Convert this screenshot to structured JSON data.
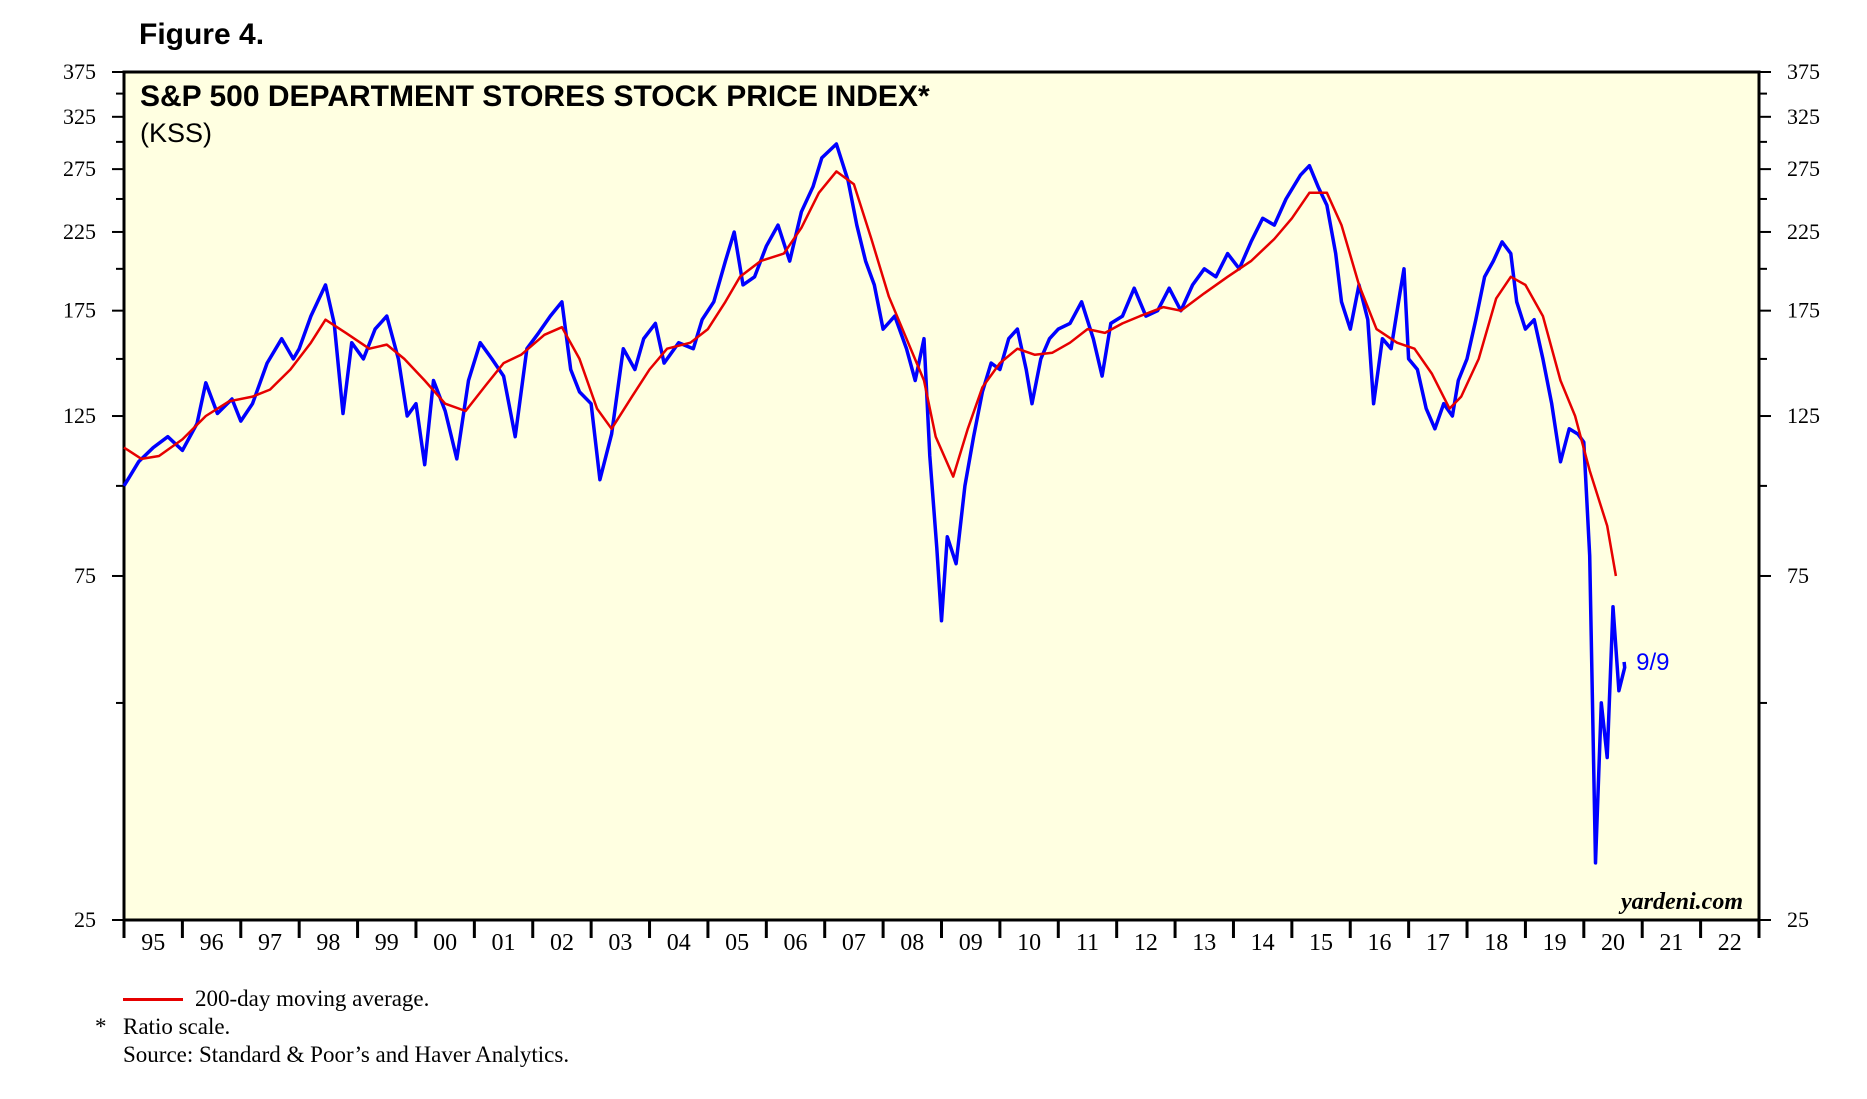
{
  "figure_label": "Figure 4.",
  "chart_data": {
    "type": "line",
    "title": "S&P 500 DEPARTMENT STORES STOCK PRICE INDEX*",
    "subtitle": "(KSS)",
    "scale": "log",
    "ylim": [
      25,
      375
    ],
    "y_ticks_labeled": [
      25,
      75,
      125,
      175,
      225,
      275,
      325,
      375
    ],
    "y_ticks_minor": [
      50,
      100,
      150,
      200,
      250,
      300,
      350
    ],
    "x_range": [
      1995,
      2023
    ],
    "x_tick_labels": [
      "95",
      "96",
      "97",
      "98",
      "99",
      "00",
      "01",
      "02",
      "03",
      "04",
      "05",
      "06",
      "07",
      "08",
      "09",
      "10",
      "11",
      "12",
      "13",
      "14",
      "15",
      "16",
      "17",
      "18",
      "19",
      "20",
      "21",
      "22"
    ],
    "end_label": "9/9",
    "watermark": "yardeni.com",
    "series": [
      {
        "name": "S&P 500 Department Stores Stock Price Index (KSS)",
        "color": "#0000ff",
        "points": [
          [
            1995.0,
            100
          ],
          [
            1995.25,
            108
          ],
          [
            1995.5,
            113
          ],
          [
            1995.75,
            117
          ],
          [
            1996.0,
            112
          ],
          [
            1996.25,
            122
          ],
          [
            1996.4,
            139
          ],
          [
            1996.6,
            126
          ],
          [
            1996.85,
            132
          ],
          [
            1997.0,
            123
          ],
          [
            1997.2,
            130
          ],
          [
            1997.45,
            148
          ],
          [
            1997.7,
            160
          ],
          [
            1997.9,
            150
          ],
          [
            1998.0,
            155
          ],
          [
            1998.2,
            172
          ],
          [
            1998.45,
            190
          ],
          [
            1998.6,
            168
          ],
          [
            1998.75,
            126
          ],
          [
            1998.9,
            158
          ],
          [
            1999.1,
            150
          ],
          [
            1999.3,
            165
          ],
          [
            1999.5,
            172
          ],
          [
            1999.7,
            150
          ],
          [
            1999.85,
            125
          ],
          [
            2000.0,
            130
          ],
          [
            2000.15,
            107
          ],
          [
            2000.3,
            140
          ],
          [
            2000.5,
            127
          ],
          [
            2000.7,
            109
          ],
          [
            2000.9,
            140
          ],
          [
            2001.1,
            158
          ],
          [
            2001.3,
            150
          ],
          [
            2001.5,
            142
          ],
          [
            2001.7,
            117
          ],
          [
            2001.9,
            155
          ],
          [
            2002.1,
            163
          ],
          [
            2002.3,
            172
          ],
          [
            2002.5,
            180
          ],
          [
            2002.65,
            145
          ],
          [
            2002.8,
            135
          ],
          [
            2003.0,
            130
          ],
          [
            2003.15,
            102
          ],
          [
            2003.35,
            118
          ],
          [
            2003.55,
            155
          ],
          [
            2003.75,
            145
          ],
          [
            2003.9,
            160
          ],
          [
            2004.1,
            168
          ],
          [
            2004.25,
            148
          ],
          [
            2004.5,
            158
          ],
          [
            2004.75,
            155
          ],
          [
            2004.9,
            170
          ],
          [
            2005.1,
            180
          ],
          [
            2005.3,
            205
          ],
          [
            2005.45,
            225
          ],
          [
            2005.6,
            190
          ],
          [
            2005.8,
            195
          ],
          [
            2006.0,
            215
          ],
          [
            2006.2,
            230
          ],
          [
            2006.4,
            205
          ],
          [
            2006.6,
            240
          ],
          [
            2006.8,
            260
          ],
          [
            2006.95,
            285
          ],
          [
            2007.2,
            298
          ],
          [
            2007.4,
            265
          ],
          [
            2007.55,
            230
          ],
          [
            2007.7,
            205
          ],
          [
            2007.85,
            190
          ],
          [
            2008.0,
            165
          ],
          [
            2008.2,
            172
          ],
          [
            2008.4,
            155
          ],
          [
            2008.55,
            140
          ],
          [
            2008.7,
            160
          ],
          [
            2008.8,
            110
          ],
          [
            2008.92,
            82
          ],
          [
            2009.0,
            65
          ],
          [
            2009.1,
            85
          ],
          [
            2009.25,
            78
          ],
          [
            2009.4,
            100
          ],
          [
            2009.55,
            117
          ],
          [
            2009.7,
            135
          ],
          [
            2009.85,
            148
          ],
          [
            2010.0,
            145
          ],
          [
            2010.15,
            160
          ],
          [
            2010.3,
            165
          ],
          [
            2010.45,
            145
          ],
          [
            2010.55,
            130
          ],
          [
            2010.7,
            150
          ],
          [
            2010.85,
            160
          ],
          [
            2011.0,
            165
          ],
          [
            2011.2,
            168
          ],
          [
            2011.4,
            180
          ],
          [
            2011.6,
            160
          ],
          [
            2011.75,
            142
          ],
          [
            2011.9,
            168
          ],
          [
            2012.1,
            172
          ],
          [
            2012.3,
            188
          ],
          [
            2012.5,
            172
          ],
          [
            2012.7,
            175
          ],
          [
            2012.9,
            188
          ],
          [
            2013.1,
            175
          ],
          [
            2013.3,
            190
          ],
          [
            2013.5,
            200
          ],
          [
            2013.7,
            195
          ],
          [
            2013.9,
            210
          ],
          [
            2014.1,
            200
          ],
          [
            2014.3,
            218
          ],
          [
            2014.5,
            235
          ],
          [
            2014.7,
            230
          ],
          [
            2014.9,
            250
          ],
          [
            2015.15,
            270
          ],
          [
            2015.3,
            278
          ],
          [
            2015.45,
            260
          ],
          [
            2015.6,
            245
          ],
          [
            2015.75,
            210
          ],
          [
            2015.85,
            180
          ],
          [
            2016.0,
            165
          ],
          [
            2016.15,
            190
          ],
          [
            2016.3,
            170
          ],
          [
            2016.4,
            130
          ],
          [
            2016.55,
            160
          ],
          [
            2016.7,
            155
          ],
          [
            2016.85,
            185
          ],
          [
            2016.92,
            200
          ],
          [
            2017.0,
            150
          ],
          [
            2017.15,
            145
          ],
          [
            2017.3,
            128
          ],
          [
            2017.45,
            120
          ],
          [
            2017.6,
            130
          ],
          [
            2017.75,
            125
          ],
          [
            2017.85,
            140
          ],
          [
            2018.0,
            150
          ],
          [
            2018.15,
            170
          ],
          [
            2018.3,
            195
          ],
          [
            2018.45,
            205
          ],
          [
            2018.6,
            218
          ],
          [
            2018.75,
            210
          ],
          [
            2018.85,
            180
          ],
          [
            2019.0,
            165
          ],
          [
            2019.15,
            170
          ],
          [
            2019.3,
            150
          ],
          [
            2019.45,
            130
          ],
          [
            2019.6,
            108
          ],
          [
            2019.75,
            120
          ],
          [
            2019.9,
            118
          ],
          [
            2020.0,
            115
          ],
          [
            2020.1,
            80
          ],
          [
            2020.2,
            30
          ],
          [
            2020.3,
            50
          ],
          [
            2020.4,
            42
          ],
          [
            2020.5,
            68
          ],
          [
            2020.6,
            52
          ],
          [
            2020.7,
            56
          ],
          [
            2020.69,
            57
          ]
        ]
      },
      {
        "name": "200-day moving average",
        "color": "#e60000",
        "points": [
          [
            1995.0,
            113
          ],
          [
            1995.3,
            109
          ],
          [
            1995.6,
            110
          ],
          [
            1996.0,
            116
          ],
          [
            1996.4,
            125
          ],
          [
            1996.8,
            131
          ],
          [
            1997.2,
            133
          ],
          [
            1997.5,
            136
          ],
          [
            1997.85,
            145
          ],
          [
            1998.2,
            158
          ],
          [
            1998.45,
            170
          ],
          [
            1998.8,
            163
          ],
          [
            1999.2,
            155
          ],
          [
            1999.5,
            157
          ],
          [
            1999.8,
            150
          ],
          [
            2000.15,
            140
          ],
          [
            2000.5,
            130
          ],
          [
            2000.85,
            127
          ],
          [
            2001.2,
            138
          ],
          [
            2001.5,
            148
          ],
          [
            2001.8,
            152
          ],
          [
            2002.2,
            162
          ],
          [
            2002.5,
            166
          ],
          [
            2002.8,
            150
          ],
          [
            2003.1,
            128
          ],
          [
            2003.35,
            120
          ],
          [
            2003.7,
            133
          ],
          [
            2004.0,
            145
          ],
          [
            2004.3,
            155
          ],
          [
            2004.7,
            158
          ],
          [
            2005.0,
            165
          ],
          [
            2005.3,
            180
          ],
          [
            2005.55,
            195
          ],
          [
            2005.9,
            205
          ],
          [
            2006.3,
            210
          ],
          [
            2006.6,
            228
          ],
          [
            2006.9,
            255
          ],
          [
            2007.2,
            273
          ],
          [
            2007.5,
            262
          ],
          [
            2007.8,
            220
          ],
          [
            2008.1,
            183
          ],
          [
            2008.4,
            160
          ],
          [
            2008.7,
            140
          ],
          [
            2008.9,
            117
          ],
          [
            2009.2,
            103
          ],
          [
            2009.45,
            120
          ],
          [
            2009.7,
            137
          ],
          [
            2010.0,
            148
          ],
          [
            2010.3,
            155
          ],
          [
            2010.6,
            152
          ],
          [
            2010.9,
            153
          ],
          [
            2011.2,
            158
          ],
          [
            2011.5,
            165
          ],
          [
            2011.8,
            163
          ],
          [
            2012.1,
            168
          ],
          [
            2012.4,
            172
          ],
          [
            2012.8,
            177
          ],
          [
            2013.1,
            175
          ],
          [
            2013.5,
            185
          ],
          [
            2013.9,
            195
          ],
          [
            2014.3,
            205
          ],
          [
            2014.7,
            220
          ],
          [
            2015.0,
            235
          ],
          [
            2015.3,
            255
          ],
          [
            2015.6,
            255
          ],
          [
            2015.85,
            230
          ],
          [
            2016.15,
            190
          ],
          [
            2016.45,
            165
          ],
          [
            2016.8,
            158
          ],
          [
            2017.1,
            155
          ],
          [
            2017.4,
            143
          ],
          [
            2017.7,
            128
          ],
          [
            2017.9,
            133
          ],
          [
            2018.2,
            150
          ],
          [
            2018.5,
            182
          ],
          [
            2018.75,
            195
          ],
          [
            2019.0,
            190
          ],
          [
            2019.3,
            172
          ],
          [
            2019.6,
            140
          ],
          [
            2019.85,
            125
          ],
          [
            2020.1,
            105
          ],
          [
            2020.4,
            88
          ],
          [
            2020.55,
            75
          ]
        ]
      }
    ]
  },
  "notes": {
    "legend_text": "200-day moving average.",
    "star": "*",
    "ratio": "Ratio scale.",
    "source": "Source: Standard & Poor’s and Haver Analytics."
  }
}
